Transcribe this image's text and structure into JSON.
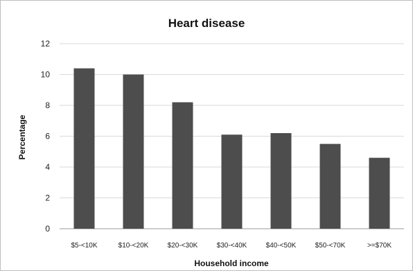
{
  "chart_data": {
    "type": "bar",
    "title": "Heart disease",
    "xlabel": "Household income",
    "ylabel": "Percentage",
    "categories": [
      "$5-<10K",
      "$10-<20K",
      "$20-<30K",
      "$30-<40K",
      "$40-<50K",
      "$50-<70K",
      ">=$70K"
    ],
    "values": [
      10.4,
      10.0,
      8.2,
      6.1,
      6.2,
      5.5,
      4.6
    ],
    "ylim": [
      0,
      12
    ],
    "yticks": [
      "0",
      "2",
      "4",
      "6",
      "8",
      "10",
      "12"
    ],
    "grid": true,
    "bar_color": "#4d4d4d"
  }
}
